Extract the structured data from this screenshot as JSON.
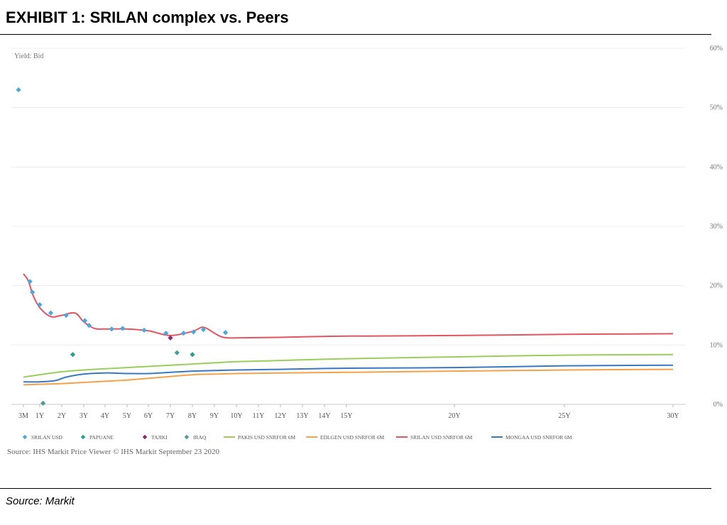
{
  "exhibit_title": "EXHIBIT 1: SRILAN complex vs. Peers",
  "footer_source": "Source:  Markit",
  "chart_data": {
    "type": "line",
    "y_axis_title": "Yield: Bid",
    "ylim": [
      0,
      60
    ],
    "y_ticks": [
      0,
      10,
      20,
      30,
      40,
      50,
      60
    ],
    "y_tick_labels": [
      "0%",
      "10%",
      "20%",
      "30%",
      "40%",
      "50%",
      "60%"
    ],
    "x_ticks": [
      "3M",
      "1Y",
      "2Y",
      "3Y",
      "4Y",
      "5Y",
      "6Y",
      "7Y",
      "8Y",
      "9Y",
      "10Y",
      "11Y",
      "12Y",
      "13Y",
      "14Y",
      "15Y",
      "20Y",
      "25Y",
      "30Y"
    ],
    "grid": true,
    "source_note": "Source: IHS Markit Price Viewer © IHS Markit September 23 2020",
    "legend_position": "bottom",
    "legend": [
      {
        "label": "SRILAN USD",
        "marker": "diamond",
        "color": "#4aa8dc"
      },
      {
        "label": "PAPUANE",
        "marker": "diamond",
        "color": "#2e9c8e"
      },
      {
        "label": "TAJIKI",
        "marker": "diamond",
        "color": "#8b2a6e"
      },
      {
        "label": "IRAQ",
        "marker": "diamond",
        "color": "#4a9a9a"
      },
      {
        "label": "PAKIS USD SNRFOR 6M",
        "marker": "line",
        "color": "#9acd5c"
      },
      {
        "label": "EDLGEN USD SNRFOR 6M",
        "marker": "line",
        "color": "#f2a34a"
      },
      {
        "label": "SRILAN USD SNRFOR 6M",
        "marker": "line",
        "color": "#e05560"
      },
      {
        "label": "MONGAA USD SNRFOR 6M",
        "marker": "line",
        "color": "#3a78c2"
      }
    ],
    "lines": [
      {
        "name": "PAKIS USD SNRFOR 6M",
        "color": "#9acd5c",
        "points": [
          [
            0,
            4.6
          ],
          [
            1,
            5.0
          ],
          [
            2,
            5.5
          ],
          [
            3,
            5.8
          ],
          [
            4,
            6.0
          ],
          [
            5,
            6.2
          ],
          [
            6,
            6.4
          ],
          [
            7,
            6.6
          ],
          [
            8,
            6.8
          ],
          [
            9,
            7.0
          ],
          [
            10,
            7.2
          ],
          [
            12,
            7.4
          ],
          [
            15,
            7.7
          ],
          [
            16,
            8.0
          ],
          [
            17,
            8.3
          ],
          [
            18,
            8.4
          ]
        ]
      },
      {
        "name": "EDLGEN USD SNRFOR 6M",
        "color": "#f2a34a",
        "points": [
          [
            0,
            3.3
          ],
          [
            1,
            3.4
          ],
          [
            2,
            3.5
          ],
          [
            3,
            3.7
          ],
          [
            4,
            3.9
          ],
          [
            5,
            4.1
          ],
          [
            6,
            4.4
          ],
          [
            7,
            4.7
          ],
          [
            8,
            5.0
          ],
          [
            9,
            5.1
          ],
          [
            10,
            5.2
          ],
          [
            12,
            5.3
          ],
          [
            15,
            5.4
          ],
          [
            16,
            5.6
          ],
          [
            17,
            5.8
          ],
          [
            18,
            5.9
          ]
        ]
      },
      {
        "name": "SRILAN USD SNRFOR 6M",
        "color": "#e05560",
        "points": [
          [
            0,
            22.0
          ],
          [
            0.3,
            20.8
          ],
          [
            0.6,
            18.3
          ],
          [
            1,
            16.3
          ],
          [
            1.5,
            14.8
          ],
          [
            2,
            15.0
          ],
          [
            2.6,
            15.4
          ],
          [
            3,
            13.9
          ],
          [
            3.5,
            12.8
          ],
          [
            4,
            12.7
          ],
          [
            5,
            12.7
          ],
          [
            6,
            12.4
          ],
          [
            7,
            11.6
          ],
          [
            8,
            12.3
          ],
          [
            8.5,
            13.0
          ],
          [
            9,
            12.0
          ],
          [
            9.4,
            11.3
          ],
          [
            10,
            11.2
          ],
          [
            12,
            11.3
          ],
          [
            15,
            11.5
          ],
          [
            16,
            11.6
          ],
          [
            17,
            11.8
          ],
          [
            18,
            11.9
          ]
        ]
      },
      {
        "name": "MONGAA USD SNRFOR 6M",
        "color": "#3a78c2",
        "points": [
          [
            0,
            3.8
          ],
          [
            1,
            3.8
          ],
          [
            1.7,
            4.0
          ],
          [
            2.2,
            4.6
          ],
          [
            3,
            5.1
          ],
          [
            4,
            5.3
          ],
          [
            5,
            5.2
          ],
          [
            6,
            5.2
          ],
          [
            7,
            5.4
          ],
          [
            8,
            5.6
          ],
          [
            9,
            5.7
          ],
          [
            10,
            5.8
          ],
          [
            12,
            5.9
          ],
          [
            15,
            6.1
          ],
          [
            16,
            6.2
          ],
          [
            17,
            6.5
          ],
          [
            18,
            6.6
          ]
        ]
      }
    ],
    "scatter": [
      {
        "name": "SRILAN USD",
        "color": "#4aa8dc",
        "points": [
          [
            -0.3,
            53
          ],
          [
            0.4,
            20.7
          ],
          [
            0.55,
            18.9
          ],
          [
            1.0,
            16.8
          ],
          [
            1.5,
            15.4
          ],
          [
            2.2,
            15.0
          ],
          [
            3.05,
            14.1
          ],
          [
            3.25,
            13.3
          ],
          [
            4.3,
            12.7
          ],
          [
            4.8,
            12.8
          ],
          [
            5.8,
            12.5
          ],
          [
            6.8,
            12.0
          ],
          [
            7.6,
            12.0
          ],
          [
            8.05,
            12.2
          ],
          [
            8.5,
            12.6
          ],
          [
            9.5,
            12.1
          ]
        ]
      },
      {
        "name": "PAPUANE",
        "color": "#2e9c8e",
        "points": [
          [
            2.5,
            8.4
          ],
          [
            8.0,
            8.4
          ]
        ]
      },
      {
        "name": "TAJIKI",
        "color": "#8b2a6e",
        "points": [
          [
            7.0,
            11.2
          ]
        ]
      },
      {
        "name": "IRAQ",
        "color": "#4a9a9a",
        "points": [
          [
            7.3,
            8.7
          ],
          [
            1.15,
            0.2
          ]
        ]
      }
    ]
  }
}
